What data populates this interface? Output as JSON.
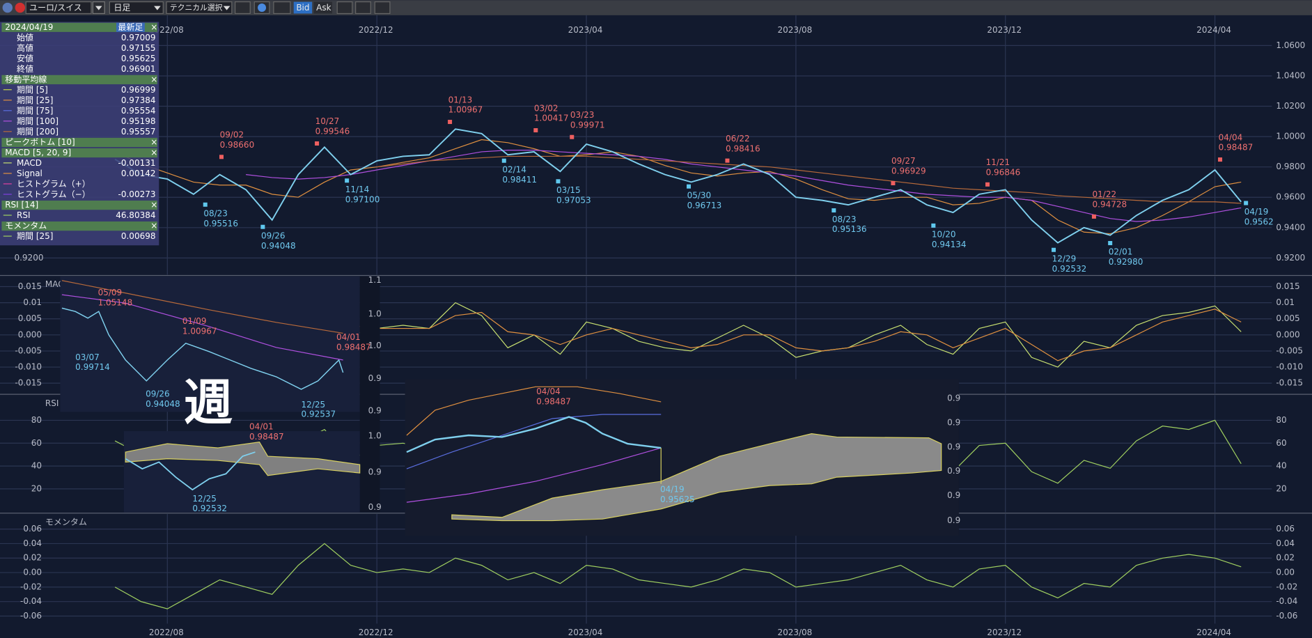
{
  "toolbar": {
    "symbol": "ユーロ/スイス",
    "timeframe": "日足",
    "technical": "テクニカル選択",
    "bid": "Bid",
    "ask": "Ask"
  },
  "info_panel": {
    "date": "2024/04/19",
    "latest_button": "最新足",
    "close": "×",
    "ohlc": [
      {
        "label": "始値",
        "value": "0.97009"
      },
      {
        "label": "高値",
        "value": "0.97155"
      },
      {
        "label": "安値",
        "value": "0.95625"
      },
      {
        "label": "終値",
        "value": "0.96901"
      }
    ],
    "sections": [
      {
        "title": "移動平均線",
        "rows": [
          {
            "label": "期間 [5]",
            "value": "0.96999",
            "color": "#c8d84a"
          },
          {
            "label": "期間 [25]",
            "value": "0.97384",
            "color": "#e09040"
          },
          {
            "label": "期間 [75]",
            "value": "0.95554",
            "color": "#5a6ee0"
          },
          {
            "label": "期間 [100]",
            "value": "0.95198",
            "color": "#b050e0"
          },
          {
            "label": "期間 [200]",
            "value": "0.95557",
            "color": "#b86a3a"
          }
        ]
      },
      {
        "title": "ピークボトム [10]",
        "rows": []
      },
      {
        "title": "MACD [5, 20, 9]",
        "rows": [
          {
            "label": "MACD",
            "value": "-0.00131",
            "color": "#c8e070"
          },
          {
            "label": "Signal",
            "value": "0.00142",
            "color": "#e09040"
          },
          {
            "label": "ヒストグラム（+）",
            "value": null,
            "color": "#e040a0"
          },
          {
            "label": "ヒストグラム（−）",
            "value": "-0.00273",
            "color": "#8040e0"
          }
        ]
      },
      {
        "title": "RSI [14]",
        "rows": [
          {
            "label": "RSI",
            "value": "46.80384",
            "color": "#a0d060"
          }
        ]
      },
      {
        "title": "モメンタム",
        "rows": [
          {
            "label": "期間 [25]",
            "value": "0.00698",
            "color": "#a0d060"
          }
        ]
      }
    ]
  },
  "charts": [
    {
      "type": "line",
      "color": "#7fd0ee",
      "categories": [
        null,
        null,
        "2022/08",
        null,
        null,
        null,
        null,
        null,
        null,
        null,
        "2022/12",
        null,
        null,
        null,
        null,
        null,
        null,
        null,
        "2023/04",
        null,
        null,
        null,
        null,
        null,
        null,
        null,
        "2023/08",
        null,
        null,
        null,
        null,
        null,
        null,
        null,
        "2023/12",
        null,
        null,
        null,
        null,
        null,
        null,
        null,
        "2024/04",
        null
      ],
      "values": [
        0.985,
        0.975,
        0.972,
        0.962,
        0.975,
        0.965,
        0.945,
        0.975,
        0.993,
        0.975,
        0.984,
        0.987,
        0.988,
        1.005,
        1.002,
        0.988,
        0.99,
        0.977,
        0.995,
        0.99,
        0.982,
        0.975,
        0.97,
        0.975,
        0.982,
        0.975,
        0.96,
        0.958,
        0.955,
        0.96,
        0.965,
        0.955,
        0.95,
        0.962,
        0.965,
        0.945,
        0.93,
        0.94,
        0.935,
        0.948,
        0.958,
        0.965,
        0.978,
        0.957
      ],
      "ma_series": [
        {
          "color": "#e09040",
          "values": [
            0.99,
            0.982,
            0.976,
            0.97,
            0.968,
            0.968,
            0.962,
            0.96,
            0.97,
            0.978,
            0.98,
            0.983,
            0.986,
            0.992,
            0.998,
            0.996,
            0.992,
            0.987,
            0.988,
            0.99,
            0.987,
            0.981,
            0.976,
            0.974,
            0.976,
            0.977,
            0.972,
            0.965,
            0.959,
            0.958,
            0.96,
            0.96,
            0.955,
            0.956,
            0.96,
            0.958,
            0.945,
            0.937,
            0.936,
            0.94,
            0.948,
            0.957,
            0.967,
            0.97
          ]
        },
        {
          "color": "#b050e0",
          "values": [
            null,
            null,
            null,
            null,
            null,
            0.975,
            0.973,
            0.972,
            0.973,
            0.975,
            0.978,
            0.981,
            0.984,
            0.987,
            0.99,
            0.991,
            0.991,
            0.99,
            0.989,
            0.988,
            0.987,
            0.985,
            0.982,
            0.98,
            0.978,
            0.976,
            0.974,
            0.971,
            0.968,
            0.966,
            0.964,
            0.962,
            0.961,
            0.96,
            0.96,
            0.958,
            0.954,
            0.95,
            0.946,
            0.944,
            0.945,
            0.947,
            0.95,
            0.953
          ]
        },
        {
          "color": "#b86a3a",
          "values": [
            null,
            null,
            null,
            null,
            null,
            null,
            null,
            null,
            null,
            null,
            0.98,
            0.982,
            0.984,
            0.985,
            0.986,
            0.987,
            0.987,
            0.987,
            0.987,
            0.986,
            0.985,
            0.984,
            0.983,
            0.982,
            0.981,
            0.98,
            0.978,
            0.976,
            0.974,
            0.972,
            0.97,
            0.968,
            0.966,
            0.965,
            0.964,
            0.963,
            0.961,
            0.96,
            0.959,
            0.958,
            0.957,
            0.957,
            0.957,
            0.956
          ]
        }
      ],
      "ylim": [
        0.909,
        1.08
      ],
      "yticks": [
        {
          "value": 0.92,
          "label": "0.9200"
        },
        {
          "value": 0.94,
          "label": "0.9400"
        },
        {
          "value": 0.96,
          "label": "0.9600"
        },
        {
          "value": 0.98,
          "label": "0.9800"
        },
        {
          "value": 1.0,
          "label": "1.0000"
        },
        {
          "value": 1.02,
          "label": "1.0200"
        },
        {
          "value": 1.04,
          "label": "1.0400"
        },
        {
          "value": 1.06,
          "label": "1.0600"
        }
      ],
      "grid": true,
      "annotations": [
        {
          "date": "08/23",
          "value": 0.95516,
          "label": "0.95516",
          "kind": "bottom"
        },
        {
          "date": "09/02",
          "value": 0.9866,
          "label": "0.98660",
          "kind": "peak"
        },
        {
          "date": "09/26",
          "value": 0.94048,
          "label": "0.94048",
          "kind": "bottom"
        },
        {
          "date": "10/27",
          "value": 0.99546,
          "label": "0.99546",
          "kind": "peak"
        },
        {
          "date": "11/14",
          "value": 0.971,
          "label": "0.97100",
          "kind": "bottom"
        },
        {
          "date": "01/13",
          "value": 1.00967,
          "label": "1.00967",
          "kind": "peak"
        },
        {
          "date": "02/14",
          "value": 0.98411,
          "label": "0.98411",
          "kind": "bottom"
        },
        {
          "date": "03/02",
          "value": 1.00417,
          "label": "1.00417",
          "kind": "peak"
        },
        {
          "date": "03/15",
          "value": 0.97053,
          "label": "0.97053",
          "kind": "bottom"
        },
        {
          "date": "03/23",
          "value": 0.99971,
          "label": "0.99971",
          "kind": "peak"
        },
        {
          "date": "05/30",
          "value": 0.96713,
          "label": "0.96713",
          "kind": "bottom"
        },
        {
          "date": "06/22",
          "value": 0.98416,
          "label": "0.98416",
          "kind": "peak"
        },
        {
          "date": "08/23",
          "value": 0.95136,
          "label": "0.95136",
          "kind": "bottom"
        },
        {
          "date": "09/27",
          "value": 0.96929,
          "label": "0.96929",
          "kind": "peak"
        },
        {
          "date": "10/20",
          "value": 0.94134,
          "label": "0.94134",
          "kind": "bottom"
        },
        {
          "date": "11/21",
          "value": 0.96846,
          "label": "0.96846",
          "kind": "peak"
        },
        {
          "date": "12/29",
          "value": 0.92532,
          "label": "0.92532",
          "kind": "bottom"
        },
        {
          "date": "01/22",
          "value": 0.94728,
          "label": "0.94728",
          "kind": "peak"
        },
        {
          "date": "02/01",
          "value": 0.9298,
          "label": "0.92980",
          "kind": "bottom"
        },
        {
          "date": "04/04",
          "value": 0.98487,
          "label": "0.98487",
          "kind": "peak"
        },
        {
          "date": "04/19",
          "value": 0.9562,
          "label": "0.9562",
          "kind": "bottom"
        }
      ]
    },
    {
      "type": "line",
      "title": "MACD",
      "series": [
        {
          "color": "#c8e070",
          "values": [
            0.008,
            0.004,
            0.0,
            -0.004,
            0.002,
            -0.002,
            -0.01,
            0.002,
            0.01,
            0.0,
            0.002,
            0.003,
            0.002,
            0.01,
            0.006,
            -0.004,
            0.0,
            -0.006,
            0.004,
            0.002,
            -0.002,
            -0.004,
            -0.005,
            -0.001,
            0.003,
            -0.001,
            -0.007,
            -0.005,
            -0.004,
            0.0,
            0.003,
            -0.003,
            -0.006,
            0.002,
            0.004,
            -0.007,
            -0.01,
            -0.002,
            -0.004,
            0.003,
            0.006,
            0.007,
            0.009,
            0.001
          ]
        },
        {
          "color": "#e09040",
          "values": [
            0.006,
            0.005,
            0.003,
            0.0,
            0.0,
            -0.001,
            -0.005,
            -0.003,
            0.004,
            0.003,
            0.002,
            0.002,
            0.002,
            0.006,
            0.007,
            0.001,
            0.0,
            -0.003,
            0.0,
            0.002,
            0.0,
            -0.002,
            -0.004,
            -0.003,
            0.0,
            0.0,
            -0.004,
            -0.005,
            -0.004,
            -0.002,
            0.001,
            0.0,
            -0.004,
            -0.001,
            0.002,
            -0.003,
            -0.008,
            -0.005,
            -0.004,
            0.0,
            0.004,
            0.006,
            0.008,
            0.004
          ]
        }
      ],
      "ylim": [
        -0.0182,
        0.0182
      ],
      "yticks": [
        0.015,
        0.01,
        0.005,
        {
          "value": 0,
          "label": "0.000"
        },
        -0.005,
        {
          "value": -0.01,
          "label": "-0.010"
        },
        -0.015
      ],
      "grid": true
    },
    {
      "type": "line",
      "title": "RSI",
      "series": [
        {
          "color": "#a0d060",
          "values": [
            62,
            50,
            45,
            38,
            58,
            45,
            30,
            60,
            72,
            45,
            58,
            60,
            55,
            75,
            65,
            40,
            50,
            35,
            62,
            55,
            45,
            40,
            38,
            48,
            60,
            48,
            35,
            38,
            35,
            48,
            58,
            40,
            35,
            58,
            60,
            35,
            25,
            45,
            38,
            62,
            75,
            72,
            80,
            42
          ]
        }
      ],
      "ylim": [
        -0.5,
        102
      ],
      "yticks": [
        20,
        40,
        60,
        80
      ],
      "grid": true
    },
    {
      "type": "line",
      "title": "モメンタム",
      "series": [
        {
          "color": "#a0d060",
          "values": [
            -0.02,
            -0.04,
            -0.05,
            -0.03,
            -0.01,
            -0.02,
            -0.03,
            0.01,
            0.04,
            0.01,
            0.0,
            0.005,
            0.0,
            0.02,
            0.01,
            -0.01,
            0.0,
            -0.015,
            0.01,
            0.005,
            -0.01,
            -0.015,
            -0.02,
            -0.01,
            0.005,
            0.0,
            -0.02,
            -0.015,
            -0.01,
            0.0,
            0.01,
            -0.01,
            -0.02,
            0.005,
            0.01,
            -0.02,
            -0.035,
            -0.015,
            -0.02,
            0.01,
            0.02,
            0.025,
            0.02,
            0.008
          ]
        }
      ],
      "ylim": [
        -0.0704,
        0.0808
      ],
      "yticks": [
        0.06,
        0.04,
        0.02,
        {
          "value": 0,
          "label": "0.00"
        },
        -0.02,
        -0.04,
        -0.06
      ],
      "grid": true
    }
  ],
  "overlays": {
    "weekly": {
      "labels": [
        "05/09",
        "1.05148",
        "01/09",
        "1.00967",
        "04/01",
        "0.98487",
        "03/07",
        "0.99714",
        "09/26",
        "0.94048",
        "12/25",
        "0.92537"
      ],
      "axis": [
        "1.1",
        "1.0",
        "1.0",
        "0.9",
        "0.9",
        "1.0",
        "0.9",
        "0.9"
      ]
    },
    "caption": "週",
    "small": {
      "labels": [
        "04/01",
        "0.98487",
        "12/25",
        "0.92532"
      ]
    },
    "ichimoku": {
      "labels": [
        "04/04",
        "0.98487",
        "04/19",
        "0.95625"
      ],
      "axis": [
        "0.9",
        "0.9",
        "0.9",
        "0.9",
        "0.9",
        "0.9"
      ]
    }
  }
}
